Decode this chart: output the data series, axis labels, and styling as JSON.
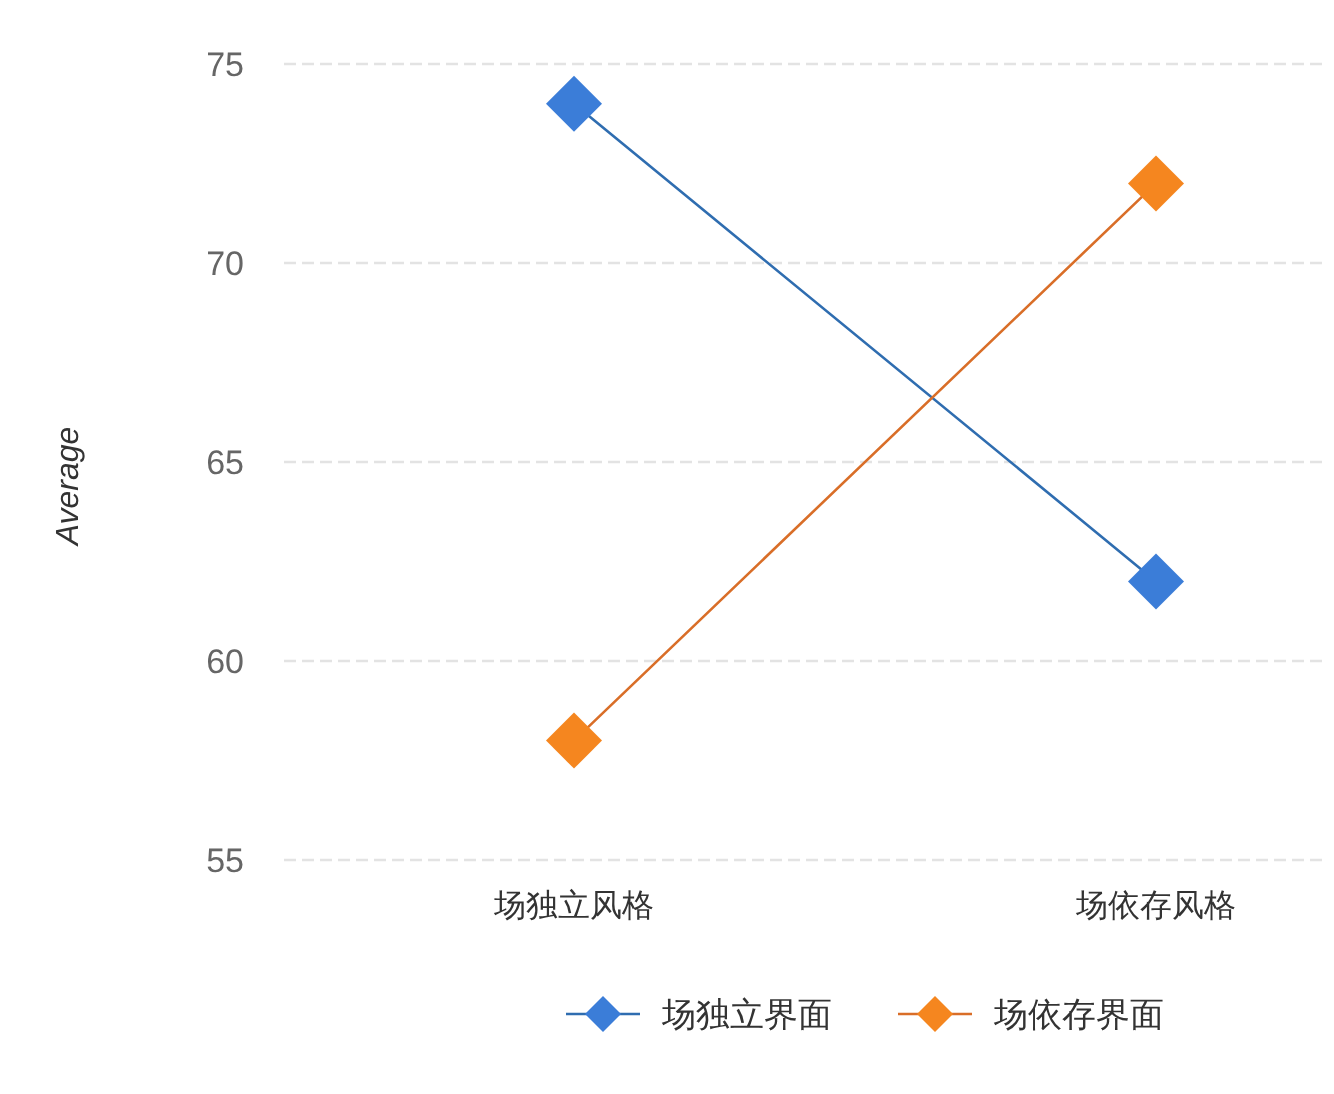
{
  "chart_data": {
    "type": "line",
    "ylabel": "Average",
    "categories": [
      "场独立风格",
      "场依存风格"
    ],
    "series": [
      {
        "name": "场独立界面",
        "color": "#2f6db0",
        "colors": [
          "#3b7dd8",
          "#3b7dd8"
        ],
        "values": [
          74,
          62
        ]
      },
      {
        "name": "场依存界面",
        "color": "#d96e28",
        "colors": [
          "#f5861f",
          "#f5861f"
        ],
        "values": [
          58,
          72
        ]
      }
    ],
    "ylim": [
      55,
      75
    ],
    "yticks": [
      55,
      60,
      65,
      70,
      75
    ],
    "grid": "y",
    "legend": "bottom",
    "marker": "diamond",
    "line_style": "solid"
  }
}
